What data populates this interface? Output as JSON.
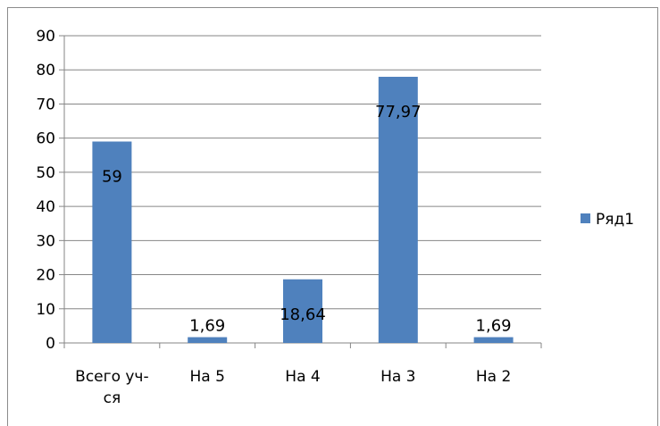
{
  "chart_data": {
    "type": "bar",
    "categories": [
      "Всего уч-ся",
      "На 5",
      "На 4",
      "На 3",
      "На 2"
    ],
    "category_lines": [
      [
        "Всего уч-",
        "ся"
      ],
      [
        "На 5"
      ],
      [
        "На 4"
      ],
      [
        "На 3"
      ],
      [
        "На 2"
      ]
    ],
    "series": [
      {
        "name": "Ряд1",
        "values": [
          59,
          1.69,
          18.64,
          77.97,
          1.69
        ],
        "color": "#4f81bd"
      }
    ],
    "data_labels": [
      "59",
      "1,69",
      "18,64",
      "77,97",
      "1,69"
    ],
    "ylim": [
      0,
      90
    ],
    "yticks": [
      "0",
      "10",
      "20",
      "30",
      "40",
      "50",
      "60",
      "70",
      "80",
      "90"
    ],
    "grid": true,
    "legend": "right",
    "gridline_color": "#868686"
  }
}
